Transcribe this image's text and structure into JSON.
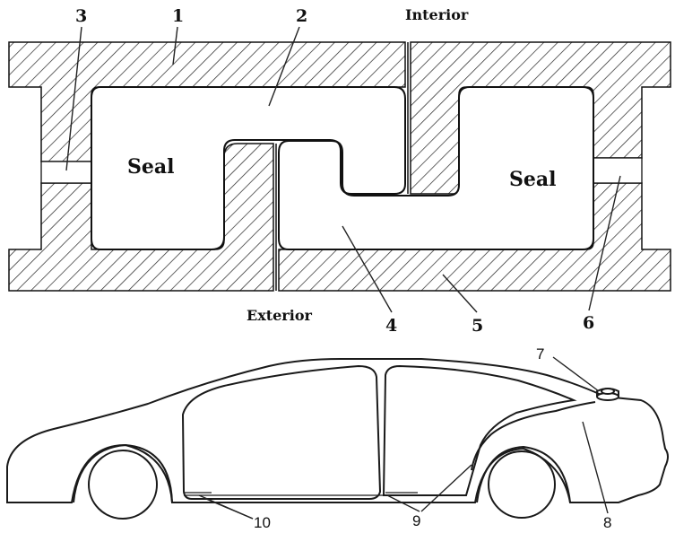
{
  "seal_section": {
    "labels": {
      "interior": "Interior",
      "exterior": "Exterior",
      "seal_left": "Seal",
      "seal_right": "Seal"
    },
    "callouts": [
      "1",
      "2",
      "3",
      "4",
      "5",
      "6"
    ]
  },
  "car": {
    "callouts": [
      "7",
      "8",
      "9",
      "10"
    ]
  },
  "colors": {
    "ink": "#111111",
    "background": "#ffffff"
  }
}
